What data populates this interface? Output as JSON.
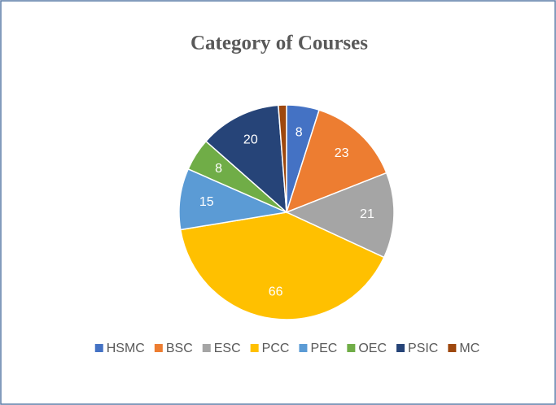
{
  "chart_data": {
    "type": "pie",
    "title": "Category of Courses",
    "categories": [
      "HSMC",
      "BSC",
      "ESC",
      "PCC",
      "PEC",
      "OEC",
      "PSIC",
      "MC"
    ],
    "values": [
      8,
      23,
      21,
      66,
      15,
      8,
      20,
      2
    ],
    "colors": [
      "#4472c4",
      "#ed7d31",
      "#a5a5a5",
      "#ffc000",
      "#5b9bd5",
      "#70ad47",
      "#264478",
      "#9e480e"
    ],
    "legend": "bottom"
  }
}
